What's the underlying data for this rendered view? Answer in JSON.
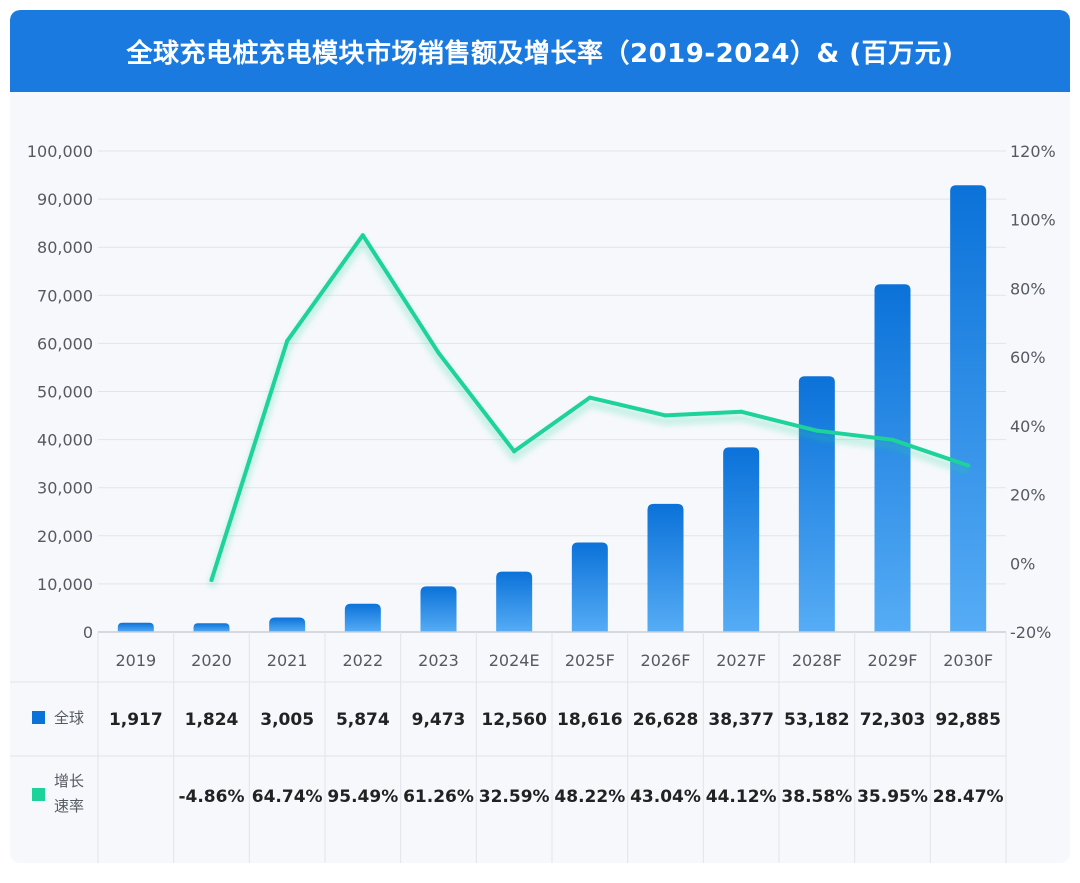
{
  "colors": {
    "header_bg": "#1a7ae0",
    "bar_top": "#0b72d9",
    "bar_bottom": "#56acf5",
    "line": "#1dd39a",
    "grid": "#e1e5ea"
  },
  "chart_data": {
    "type": "bar",
    "title": "全球充电桩充电模块市场销售额及增长率（2019-2024）& (百万元)",
    "categories": [
      "2019",
      "2020",
      "2021",
      "2022",
      "2023",
      "2024E",
      "2025F",
      "2026F",
      "2027F",
      "2028F",
      "2029F",
      "2030F"
    ],
    "series": [
      {
        "name": "全球",
        "kind": "bar",
        "axis": "left",
        "values": [
          1917,
          1824,
          3005,
          5874,
          9473,
          12560,
          18616,
          26628,
          38377,
          53182,
          72303,
          92885
        ],
        "labels": [
          "1,917",
          "1,824",
          "3,005",
          "5,874",
          "9,473",
          "12,560",
          "18,616",
          "26,628",
          "38,377",
          "53,182",
          "72,303",
          "92,885"
        ]
      },
      {
        "name": "增长速率",
        "name_lines": [
          "增长",
          "速率"
        ],
        "kind": "line",
        "axis": "right",
        "values": [
          null,
          -4.86,
          64.74,
          95.49,
          61.26,
          32.59,
          48.22,
          43.04,
          44.12,
          38.58,
          35.95,
          28.47
        ],
        "labels": [
          "",
          "-4.86%",
          "64.74%",
          "95.49%",
          "61.26%",
          "32.59%",
          "48.22%",
          "43.04%",
          "44.12%",
          "38.58%",
          "35.95%",
          "28.47%"
        ]
      }
    ],
    "y_left": {
      "ylim": [
        0,
        100000
      ],
      "ticks": [
        0,
        10000,
        20000,
        30000,
        40000,
        50000,
        60000,
        70000,
        80000,
        90000,
        100000
      ],
      "tick_labels": [
        "0",
        "10,000",
        "20,000",
        "30,000",
        "40,000",
        "50,000",
        "60,000",
        "70,000",
        "80,000",
        "90,000",
        "100,000"
      ]
    },
    "y_right": {
      "ylim": [
        -20,
        120
      ],
      "ticks": [
        -20,
        0,
        20,
        40,
        60,
        80,
        100,
        120
      ],
      "tick_labels": [
        "-20%",
        "0%",
        "20%",
        "40%",
        "60%",
        "80%",
        "100%",
        "120%"
      ]
    },
    "grid": true,
    "legend": "bottom-table"
  }
}
